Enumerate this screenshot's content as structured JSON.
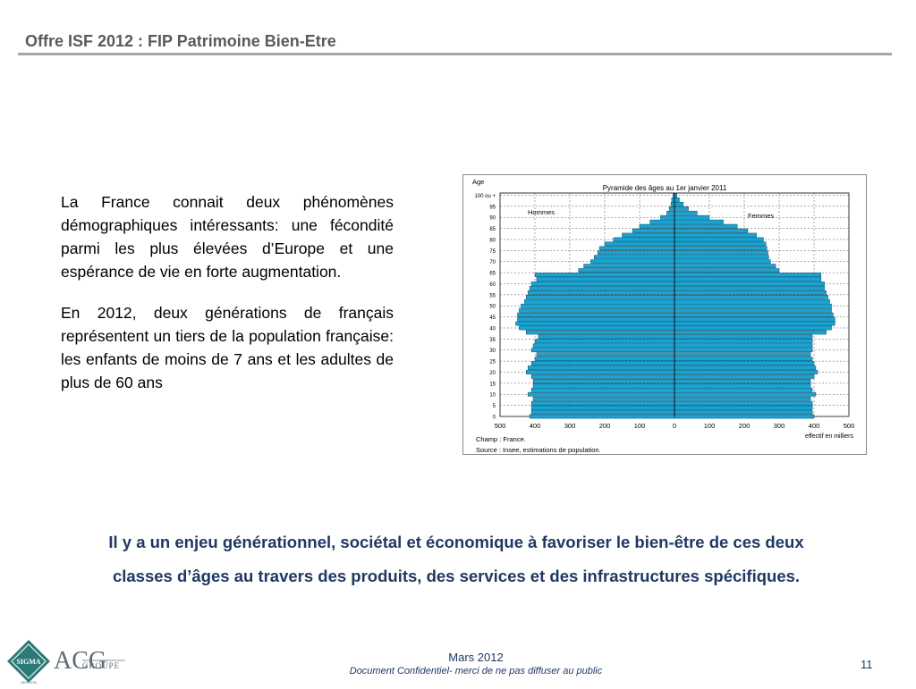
{
  "slide": {
    "title": "Offre ISF 2012 : FIP Patrimoine Bien-Etre",
    "paragraphs": [
      "La France connait deux phénomènes démographiques intéressants: une fécondité parmi les plus élevées d’Europe et une espérance de vie en forte augmentation.",
      "En 2012, deux générations de français représentent un tiers de la population française: les enfants de moins de 7 ans et les adultes de plus de 60 ans"
    ],
    "conclusion": [
      "Il y a un enjeu générationnel, sociétal et économique à favoriser le bien-être de ces deux",
      "classes d’âges au travers des produits, des services et des infrastructures spécifiques."
    ]
  },
  "footer": {
    "date": "Mars 2012",
    "confidential": "Document Confidentiel- merci de ne pas diffuser au public",
    "page_number": "11"
  },
  "logos": {
    "sigma_text": "SIGMA",
    "sigma_sub": "GESTION",
    "acg_text": "ACG",
    "acg_sub": "GROUPE"
  },
  "colors": {
    "bar_fill": "#1aa3d1",
    "bar_stroke": "#0b4f6c",
    "conclusion_text": "#1f3864",
    "title_text": "#5a5a5a"
  },
  "chart_data": {
    "type": "bar",
    "title": "Pyramide des âges au 1er janvier 2011",
    "ylabel": "Age",
    "xlabel": "effectif en milliers",
    "series": [
      {
        "name": "Hommes",
        "side": "left"
      },
      {
        "name": "Femmes",
        "side": "right"
      }
    ],
    "y_ticks": [
      "0",
      "5",
      "10",
      "15",
      "20",
      "25",
      "30",
      "35",
      "40",
      "45",
      "50",
      "55",
      "60",
      "65",
      "70",
      "75",
      "80",
      "85",
      "90",
      "95",
      "100 ou +"
    ],
    "x_ticks": [
      "500",
      "400",
      "300",
      "200",
      "100",
      "0",
      "100",
      "200",
      "300",
      "400",
      "500"
    ],
    "xlim": [
      0,
      500
    ],
    "notes": [
      "Champ : France.",
      "Source : Insee, estimations de population."
    ],
    "ages": [
      0,
      2,
      4,
      6,
      8,
      10,
      12,
      14,
      16,
      18,
      20,
      22,
      24,
      26,
      28,
      30,
      32,
      34,
      36,
      38,
      40,
      42,
      44,
      46,
      48,
      50,
      52,
      54,
      56,
      58,
      60,
      62,
      64,
      66,
      68,
      70,
      72,
      74,
      76,
      78,
      80,
      82,
      84,
      86,
      88,
      90,
      92,
      94,
      96,
      98,
      100
    ],
    "men": [
      415,
      410,
      410,
      410,
      405,
      420,
      410,
      405,
      405,
      410,
      425,
      420,
      410,
      400,
      395,
      410,
      405,
      400,
      390,
      425,
      445,
      455,
      450,
      450,
      445,
      440,
      430,
      425,
      420,
      415,
      410,
      395,
      400,
      275,
      260,
      240,
      230,
      220,
      215,
      200,
      175,
      150,
      120,
      100,
      70,
      40,
      22,
      15,
      10,
      8,
      4
    ],
    "women": [
      400,
      395,
      395,
      395,
      390,
      405,
      395,
      390,
      390,
      400,
      410,
      405,
      400,
      395,
      390,
      395,
      395,
      395,
      395,
      435,
      450,
      460,
      460,
      455,
      450,
      450,
      445,
      440,
      435,
      430,
      430,
      420,
      420,
      300,
      290,
      275,
      270,
      268,
      265,
      262,
      255,
      235,
      210,
      180,
      140,
      100,
      65,
      40,
      25,
      14,
      7
    ]
  }
}
